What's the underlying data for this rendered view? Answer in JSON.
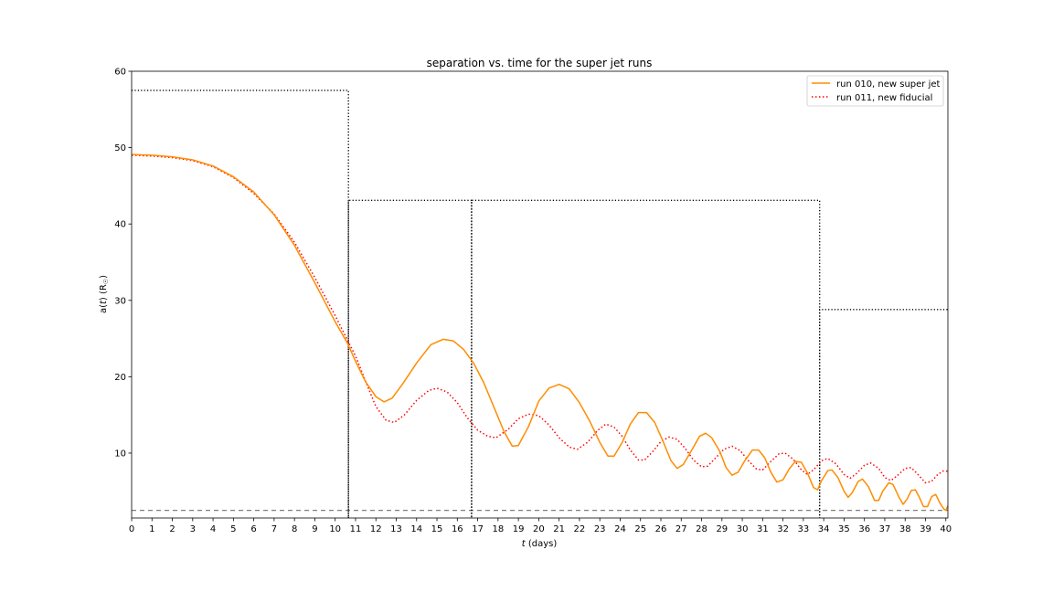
{
  "chart_data": {
    "type": "line",
    "title": "separation vs. time for the super jet runs",
    "xlabel_italic": "t",
    "xlabel_rest": " (days)",
    "ylabel_prefix": "a(",
    "ylabel_italic": "t",
    "ylabel_suffix": ") (R",
    "ylabel_sub": "☉",
    "ylabel_close": ")",
    "xlim": [
      0,
      40.1
    ],
    "ylim": [
      1.5,
      60
    ],
    "xticks": [
      0,
      1,
      2,
      3,
      4,
      5,
      6,
      7,
      8,
      9,
      10,
      11,
      12,
      13,
      14,
      15,
      16,
      17,
      18,
      19,
      20,
      21,
      22,
      23,
      24,
      25,
      26,
      27,
      28,
      29,
      30,
      31,
      32,
      33,
      34,
      35,
      36,
      37,
      38,
      39,
      40
    ],
    "yticks": [
      10,
      20,
      30,
      40,
      50,
      60
    ],
    "legend_position": "top-right",
    "series": [
      {
        "name": "run 010, new super jet",
        "color": "#ff8c00",
        "style": "solid",
        "points": [
          [
            0,
            49.1
          ],
          [
            1,
            49.0
          ],
          [
            2,
            48.8
          ],
          [
            3,
            48.4
          ],
          [
            4,
            47.6
          ],
          [
            5,
            46.2
          ],
          [
            6,
            44.2
          ],
          [
            7,
            41.2
          ],
          [
            8,
            37.2
          ],
          [
            9,
            32.3
          ],
          [
            10,
            27.2
          ],
          [
            10.6,
            24.4
          ],
          [
            11,
            22.0
          ],
          [
            11.5,
            19.3
          ],
          [
            12,
            17.4
          ],
          [
            12.4,
            16.7
          ],
          [
            12.8,
            17.2
          ],
          [
            13.3,
            19.0
          ],
          [
            14,
            21.8
          ],
          [
            14.7,
            24.2
          ],
          [
            15.3,
            24.9
          ],
          [
            15.8,
            24.7
          ],
          [
            16.3,
            23.6
          ],
          [
            16.8,
            21.8
          ],
          [
            17.3,
            19.2
          ],
          [
            17.8,
            16.0
          ],
          [
            18.3,
            12.8
          ],
          [
            18.7,
            10.9
          ],
          [
            19.0,
            11.0
          ],
          [
            19.5,
            13.5
          ],
          [
            20.0,
            16.8
          ],
          [
            20.5,
            18.5
          ],
          [
            21.0,
            19.0
          ],
          [
            21.5,
            18.4
          ],
          [
            22.0,
            16.6
          ],
          [
            22.5,
            14.2
          ],
          [
            23.0,
            11.4
          ],
          [
            23.4,
            9.6
          ],
          [
            23.7,
            9.6
          ],
          [
            24.1,
            11.4
          ],
          [
            24.5,
            13.8
          ],
          [
            24.9,
            15.3
          ],
          [
            25.3,
            15.3
          ],
          [
            25.7,
            14.0
          ],
          [
            26.1,
            11.6
          ],
          [
            26.5,
            9.0
          ],
          [
            26.8,
            8.0
          ],
          [
            27.1,
            8.5
          ],
          [
            27.5,
            10.3
          ],
          [
            27.9,
            12.2
          ],
          [
            28.2,
            12.6
          ],
          [
            28.5,
            12.0
          ],
          [
            28.9,
            10.2
          ],
          [
            29.2,
            8.1
          ],
          [
            29.5,
            7.1
          ],
          [
            29.8,
            7.5
          ],
          [
            30.1,
            8.9
          ],
          [
            30.5,
            10.4
          ],
          [
            30.8,
            10.4
          ],
          [
            31.1,
            9.4
          ],
          [
            31.4,
            7.5
          ],
          [
            31.7,
            6.2
          ],
          [
            32.0,
            6.5
          ],
          [
            32.3,
            7.9
          ],
          [
            32.6,
            8.9
          ],
          [
            32.9,
            8.8
          ],
          [
            33.2,
            7.4
          ],
          [
            33.5,
            5.5
          ],
          [
            33.7,
            5.2
          ],
          [
            33.9,
            6.4
          ],
          [
            34.2,
            7.7
          ],
          [
            34.4,
            7.8
          ],
          [
            34.7,
            6.8
          ],
          [
            35.0,
            5.0
          ],
          [
            35.2,
            4.2
          ],
          [
            35.4,
            4.8
          ],
          [
            35.7,
            6.3
          ],
          [
            35.9,
            6.6
          ],
          [
            36.2,
            5.6
          ],
          [
            36.5,
            3.8
          ],
          [
            36.7,
            3.8
          ],
          [
            36.9,
            5.0
          ],
          [
            37.2,
            6.1
          ],
          [
            37.4,
            5.9
          ],
          [
            37.7,
            4.2
          ],
          [
            37.9,
            3.3
          ],
          [
            38.1,
            4.0
          ],
          [
            38.3,
            5.1
          ],
          [
            38.5,
            5.2
          ],
          [
            38.7,
            4.2
          ],
          [
            38.9,
            3.0
          ],
          [
            39.1,
            3.0
          ],
          [
            39.3,
            4.3
          ],
          [
            39.5,
            4.6
          ],
          [
            39.7,
            3.5
          ],
          [
            39.9,
            2.7
          ],
          [
            40.0,
            2.5
          ],
          [
            40.1,
            3.1
          ]
        ]
      },
      {
        "name": "run 011, new fiducial",
        "color": "#ff0000",
        "style": "dotted",
        "points": [
          [
            0,
            49.0
          ],
          [
            1,
            48.9
          ],
          [
            2,
            48.7
          ],
          [
            3,
            48.3
          ],
          [
            4,
            47.5
          ],
          [
            5,
            46.1
          ],
          [
            6,
            44.0
          ],
          [
            7,
            41.3
          ],
          [
            8,
            37.6
          ],
          [
            9,
            33.0
          ],
          [
            10,
            28.0
          ],
          [
            11,
            22.7
          ],
          [
            11.6,
            18.7
          ],
          [
            12,
            16.1
          ],
          [
            12.5,
            14.3
          ],
          [
            12.9,
            14.0
          ],
          [
            13.4,
            15.0
          ],
          [
            14,
            16.9
          ],
          [
            14.6,
            18.2
          ],
          [
            15.0,
            18.5
          ],
          [
            15.5,
            18.0
          ],
          [
            16.0,
            16.6
          ],
          [
            16.5,
            14.6
          ],
          [
            17.0,
            13.0
          ],
          [
            17.5,
            12.2
          ],
          [
            17.9,
            12.0
          ],
          [
            18.5,
            13.1
          ],
          [
            19.0,
            14.5
          ],
          [
            19.5,
            15.1
          ],
          [
            20.0,
            14.9
          ],
          [
            20.5,
            13.7
          ],
          [
            21.0,
            12.0
          ],
          [
            21.5,
            10.8
          ],
          [
            21.9,
            10.5
          ],
          [
            22.4,
            11.4
          ],
          [
            22.9,
            13.0
          ],
          [
            23.3,
            13.8
          ],
          [
            23.7,
            13.4
          ],
          [
            24.1,
            12.2
          ],
          [
            24.5,
            10.4
          ],
          [
            24.9,
            9.1
          ],
          [
            25.2,
            9.1
          ],
          [
            25.6,
            10.2
          ],
          [
            26.0,
            11.5
          ],
          [
            26.4,
            12.1
          ],
          [
            26.8,
            11.8
          ],
          [
            27.2,
            10.6
          ],
          [
            27.6,
            9.1
          ],
          [
            28.0,
            8.2
          ],
          [
            28.3,
            8.3
          ],
          [
            28.7,
            9.4
          ],
          [
            29.1,
            10.5
          ],
          [
            29.5,
            10.9
          ],
          [
            29.9,
            10.3
          ],
          [
            30.3,
            9.0
          ],
          [
            30.7,
            7.9
          ],
          [
            31.0,
            7.8
          ],
          [
            31.4,
            8.9
          ],
          [
            31.8,
            9.9
          ],
          [
            32.1,
            10.0
          ],
          [
            32.5,
            9.2
          ],
          [
            32.9,
            7.8
          ],
          [
            33.2,
            7.2
          ],
          [
            33.5,
            7.8
          ],
          [
            33.9,
            9.0
          ],
          [
            34.2,
            9.3
          ],
          [
            34.6,
            8.6
          ],
          [
            35.0,
            7.2
          ],
          [
            35.3,
            6.7
          ],
          [
            35.6,
            7.3
          ],
          [
            36.0,
            8.4
          ],
          [
            36.3,
            8.7
          ],
          [
            36.7,
            8.0
          ],
          [
            37.0,
            6.8
          ],
          [
            37.3,
            6.4
          ],
          [
            37.6,
            7.0
          ],
          [
            38.0,
            8.0
          ],
          [
            38.3,
            8.1
          ],
          [
            38.7,
            7.0
          ],
          [
            39.0,
            6.1
          ],
          [
            39.3,
            6.3
          ],
          [
            39.6,
            7.2
          ],
          [
            39.9,
            7.7
          ],
          [
            40.1,
            7.6
          ]
        ]
      }
    ],
    "reference_lines": {
      "black_dotted_step": [
        [
          0,
          57.5
        ],
        [
          10.65,
          57.5
        ],
        [
          10.65,
          1.5
        ],
        [
          10.65,
          43.1
        ],
        [
          16.7,
          43.1
        ],
        [
          16.7,
          1.5
        ],
        [
          16.7,
          43.1
        ],
        [
          33.8,
          43.1
        ],
        [
          33.8,
          1.5
        ],
        [
          33.8,
          28.8
        ],
        [
          40.1,
          28.8
        ]
      ],
      "gray_dashed_level": 2.5,
      "black_color": "#000000",
      "gray_color": "#7f7f7f"
    }
  }
}
